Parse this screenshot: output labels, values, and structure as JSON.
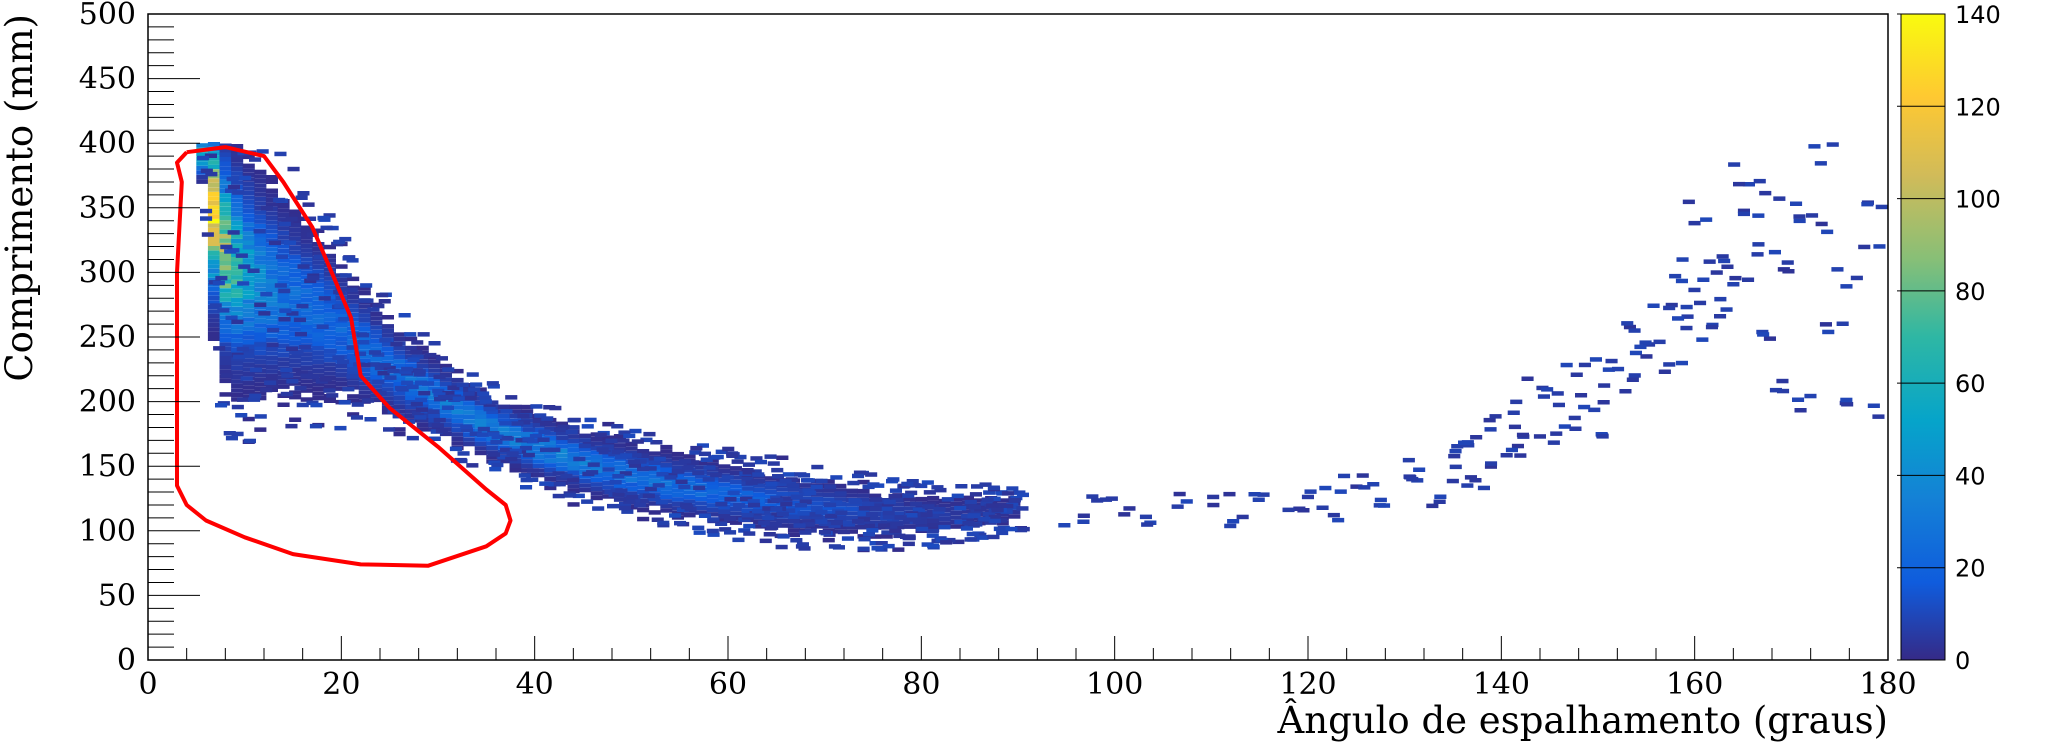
{
  "chart_data": {
    "type": "heatmap",
    "title": "",
    "xlabel": "Ângulo  de espalhamento (graus)",
    "ylabel": "Comprimento (mm)",
    "xlim": [
      0,
      180
    ],
    "ylim": [
      0,
      500
    ],
    "x_ticks": [
      0,
      20,
      40,
      60,
      80,
      100,
      120,
      140,
      160,
      180
    ],
    "y_ticks": [
      0,
      50,
      100,
      150,
      200,
      250,
      300,
      350,
      400,
      450,
      500
    ],
    "colorbar": {
      "range": [
        0,
        140
      ],
      "ticks": [
        0,
        20,
        40,
        60,
        80,
        100,
        120,
        140
      ],
      "palette": "parula"
    },
    "bins": {
      "x_width_deg": 1.2,
      "y_height_mm": 3.5
    },
    "main_band": [
      {
        "x": 5,
        "y_center": 390,
        "y_spread": 20,
        "peak": 60
      },
      {
        "x": 6,
        "y_center": 350,
        "y_spread": 75,
        "peak": 125
      },
      {
        "x": 7,
        "y_center": 320,
        "y_spread": 80,
        "peak": 105
      },
      {
        "x": 8,
        "y_center": 305,
        "y_spread": 85,
        "peak": 75
      },
      {
        "x": 10,
        "y_center": 295,
        "y_spread": 80,
        "peak": 45
      },
      {
        "x": 12,
        "y_center": 285,
        "y_spread": 75,
        "peak": 32
      },
      {
        "x": 15,
        "y_center": 275,
        "y_spread": 65,
        "peak": 25
      },
      {
        "x": 18,
        "y_center": 262,
        "y_spread": 55,
        "peak": 22
      },
      {
        "x": 20,
        "y_center": 250,
        "y_spread": 45,
        "peak": 22
      },
      {
        "x": 22,
        "y_center": 238,
        "y_spread": 38,
        "peak": 24
      },
      {
        "x": 25,
        "y_center": 222,
        "y_spread": 32,
        "peak": 26
      },
      {
        "x": 28,
        "y_center": 207,
        "y_spread": 28,
        "peak": 28
      },
      {
        "x": 30,
        "y_center": 198,
        "y_spread": 26,
        "peak": 30
      },
      {
        "x": 33,
        "y_center": 185,
        "y_spread": 24,
        "peak": 32
      },
      {
        "x": 36,
        "y_center": 174,
        "y_spread": 22,
        "peak": 33
      },
      {
        "x": 40,
        "y_center": 162,
        "y_spread": 22,
        "peak": 34
      },
      {
        "x": 45,
        "y_center": 150,
        "y_spread": 22,
        "peak": 32
      },
      {
        "x": 50,
        "y_center": 140,
        "y_spread": 22,
        "peak": 28
      },
      {
        "x": 55,
        "y_center": 132,
        "y_spread": 22,
        "peak": 24
      },
      {
        "x": 60,
        "y_center": 126,
        "y_spread": 22,
        "peak": 20
      },
      {
        "x": 65,
        "y_center": 120,
        "y_spread": 22,
        "peak": 15
      },
      {
        "x": 70,
        "y_center": 116,
        "y_spread": 20,
        "peak": 12
      },
      {
        "x": 75,
        "y_center": 112,
        "y_spread": 18,
        "peak": 9
      },
      {
        "x": 80,
        "y_center": 110,
        "y_spread": 16,
        "peak": 6
      },
      {
        "x": 85,
        "y_center": 112,
        "y_spread": 14,
        "peak": 4
      },
      {
        "x": 90,
        "y_center": 116,
        "y_spread": 12,
        "peak": 3
      }
    ],
    "sparse_tail": [
      {
        "x": 95,
        "y": 110
      },
      {
        "x": 98,
        "y": 120
      },
      {
        "x": 100,
        "y": 115
      },
      {
        "x": 103,
        "y": 112
      },
      {
        "x": 106,
        "y": 125
      },
      {
        "x": 110,
        "y": 118
      },
      {
        "x": 112,
        "y": 108
      },
      {
        "x": 115,
        "y": 130
      },
      {
        "x": 118,
        "y": 122
      },
      {
        "x": 120,
        "y": 130
      },
      {
        "x": 122,
        "y": 115
      },
      {
        "x": 124,
        "y": 132
      },
      {
        "x": 126,
        "y": 140
      },
      {
        "x": 128,
        "y": 125
      },
      {
        "x": 130,
        "y": 148
      },
      {
        "x": 131,
        "y": 135
      },
      {
        "x": 132,
        "y": 125
      },
      {
        "x": 134,
        "y": 155
      },
      {
        "x": 135,
        "y": 140
      },
      {
        "x": 136,
        "y": 165
      },
      {
        "x": 137,
        "y": 130
      },
      {
        "x": 138,
        "y": 175
      },
      {
        "x": 139,
        "y": 150
      },
      {
        "x": 140,
        "y": 190
      },
      {
        "x": 141,
        "y": 160
      },
      {
        "x": 142,
        "y": 180
      },
      {
        "x": 143,
        "y": 210
      },
      {
        "x": 144,
        "y": 170
      },
      {
        "x": 145,
        "y": 200
      },
      {
        "x": 146,
        "y": 185
      },
      {
        "x": 147,
        "y": 220
      },
      {
        "x": 148,
        "y": 195
      },
      {
        "x": 149,
        "y": 175
      },
      {
        "x": 150,
        "y": 230
      },
      {
        "x": 151,
        "y": 205
      },
      {
        "x": 152,
        "y": 215
      },
      {
        "x": 153,
        "y": 255
      },
      {
        "x": 154,
        "y": 235
      },
      {
        "x": 155,
        "y": 245
      },
      {
        "x": 156,
        "y": 270
      },
      {
        "x": 157,
        "y": 225
      },
      {
        "x": 158,
        "y": 260
      },
      {
        "x": 159,
        "y": 280
      },
      {
        "x": 160,
        "y": 250
      },
      {
        "x": 161,
        "y": 300
      },
      {
        "x": 162,
        "y": 270
      },
      {
        "x": 163,
        "y": 310
      },
      {
        "x": 164,
        "y": 285
      },
      {
        "x": 165,
        "y": 350
      },
      {
        "x": 166,
        "y": 245
      },
      {
        "x": 167,
        "y": 320
      },
      {
        "x": 168,
        "y": 300
      },
      {
        "x": 169,
        "y": 215
      },
      {
        "x": 170,
        "y": 345
      },
      {
        "x": 171,
        "y": 200
      },
      {
        "x": 172,
        "y": 335
      },
      {
        "x": 173,
        "y": 390
      },
      {
        "x": 174,
        "y": 250
      },
      {
        "x": 176,
        "y": 205
      },
      {
        "x": 178,
        "y": 325
      },
      {
        "x": 179,
        "y": 195
      },
      {
        "x": 180,
        "y": 190
      },
      {
        "x": 164,
        "y": 375
      },
      {
        "x": 160,
        "y": 345
      },
      {
        "x": 157,
        "y": 300
      },
      {
        "x": 167,
        "y": 360
      },
      {
        "x": 178,
        "y": 355
      },
      {
        "x": 175,
        "y": 295
      }
    ],
    "annotation_contour": {
      "color": "#ff0000",
      "points": [
        [
          4,
          393
        ],
        [
          8,
          397
        ],
        [
          12,
          390
        ],
        [
          14,
          370
        ],
        [
          17,
          335
        ],
        [
          19,
          300
        ],
        [
          21,
          265
        ],
        [
          22,
          220
        ],
        [
          25,
          195
        ],
        [
          30,
          165
        ],
        [
          35,
          132
        ],
        [
          37,
          120
        ],
        [
          37.5,
          108
        ],
        [
          37,
          98
        ],
        [
          35,
          88
        ],
        [
          29,
          73
        ],
        [
          22,
          74
        ],
        [
          15,
          82
        ],
        [
          10,
          95
        ],
        [
          6,
          108
        ],
        [
          4,
          120
        ],
        [
          3,
          135
        ],
        [
          3,
          200
        ],
        [
          3,
          300
        ],
        [
          3.5,
          370
        ],
        [
          3,
          385
        ],
        [
          4,
          393
        ]
      ]
    }
  }
}
